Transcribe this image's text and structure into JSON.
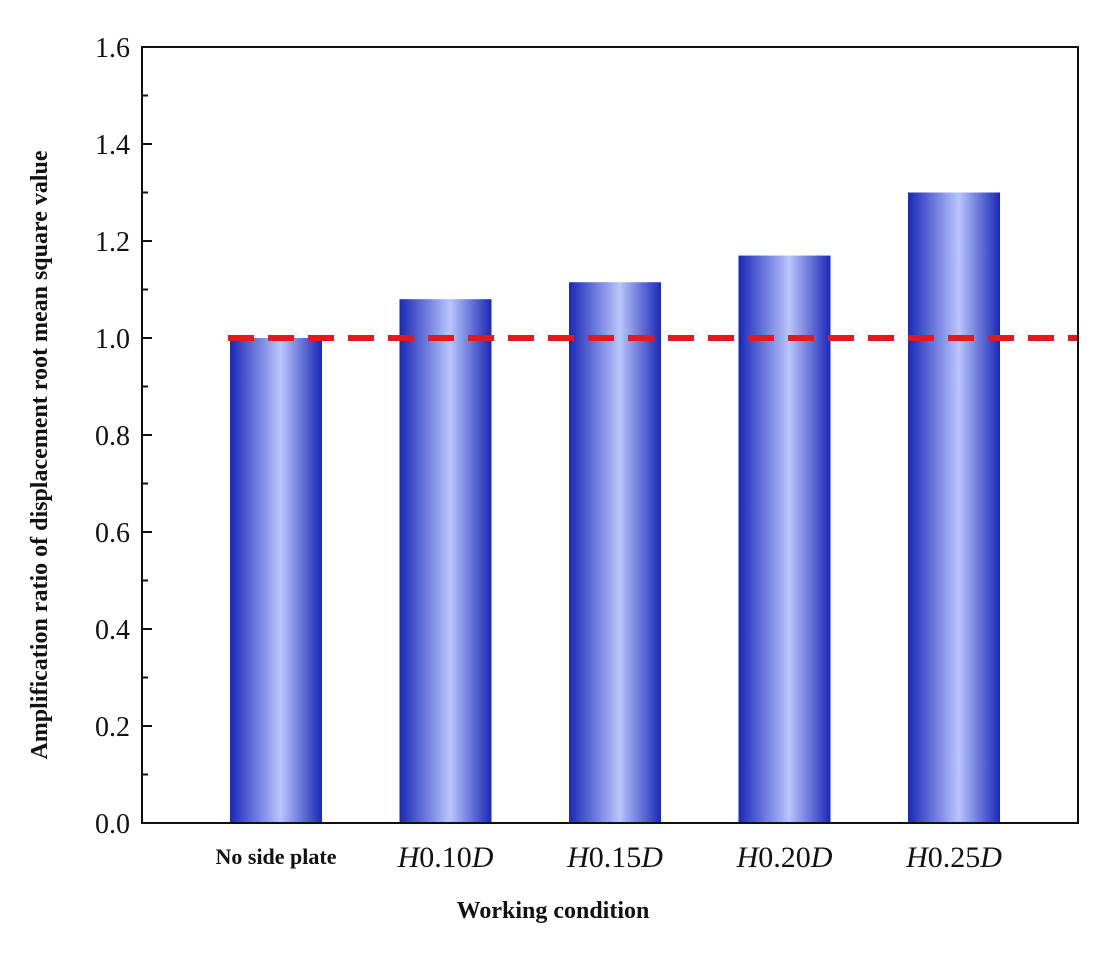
{
  "chart_data": {
    "type": "bar",
    "title": "",
    "xlabel": "Working condition",
    "ylabel": "Amplification ratio of displacement root mean square value",
    "categories": [
      {
        "prefix": "",
        "value": "No side plate",
        "suffix": ""
      },
      {
        "prefix": "H",
        "value": "0.10",
        "suffix": "D"
      },
      {
        "prefix": "H",
        "value": "0.15",
        "suffix": "D"
      },
      {
        "prefix": "H",
        "value": "0.20",
        "suffix": "D"
      },
      {
        "prefix": "H",
        "value": "0.25",
        "suffix": "D"
      }
    ],
    "values": [
      1.0,
      1.08,
      1.115,
      1.17,
      1.3
    ],
    "ylim": [
      0.0,
      1.6
    ],
    "yticks": [
      "0.0",
      "0.2",
      "0.4",
      "0.6",
      "0.8",
      "1.0",
      "1.2",
      "1.4",
      "1.6"
    ],
    "reference_line": {
      "y": 1.0,
      "style": "dashed",
      "color": "#e8161d"
    },
    "bar_color_edge": "#1a28b8",
    "bar_color_center": "#b9c5fb",
    "grid": false,
    "legend": "none"
  }
}
